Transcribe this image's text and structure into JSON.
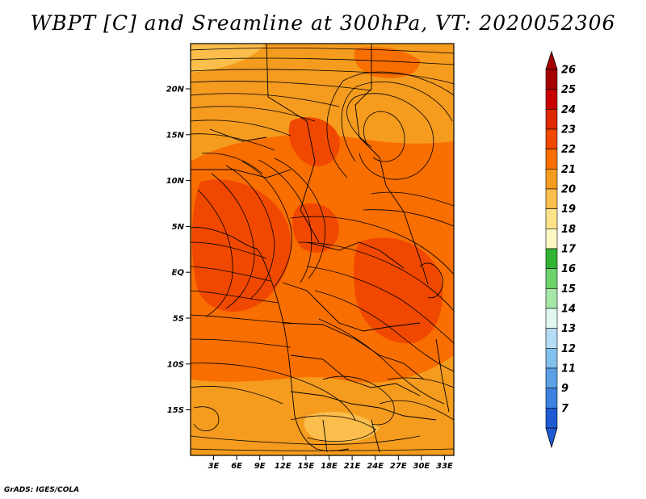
{
  "title": "WBPT [C] and Sreamline at 300hPa, VT: 2020052306",
  "credit": "GrADS: IGES/COLA",
  "map": {
    "lat_labels": [
      "20N",
      "15N",
      "10N",
      "5N",
      "EQ",
      "5S",
      "10S",
      "15S"
    ],
    "lon_labels": [
      "3E",
      "6E",
      "9E",
      "12E",
      "15E",
      "18E",
      "21E",
      "24E",
      "27E",
      "30E",
      "33E"
    ]
  },
  "colorbar": {
    "labels": [
      "26",
      "25",
      "24",
      "23",
      "22",
      "21",
      "20",
      "19",
      "18",
      "17",
      "16",
      "15",
      "14",
      "13",
      "12",
      "11",
      "9",
      "7"
    ],
    "colors": [
      "#a50000",
      "#c80000",
      "#e02800",
      "#f04800",
      "#f86e00",
      "#f59b1e",
      "#fbbd4b",
      "#fde28a",
      "#fdf8c4",
      "#34b434",
      "#6cd26c",
      "#a6e6a6",
      "#e0f8f0",
      "#b4dcf4",
      "#82c0ee",
      "#5ca0e6",
      "#3c82de",
      "#1e5ad2"
    ]
  }
}
